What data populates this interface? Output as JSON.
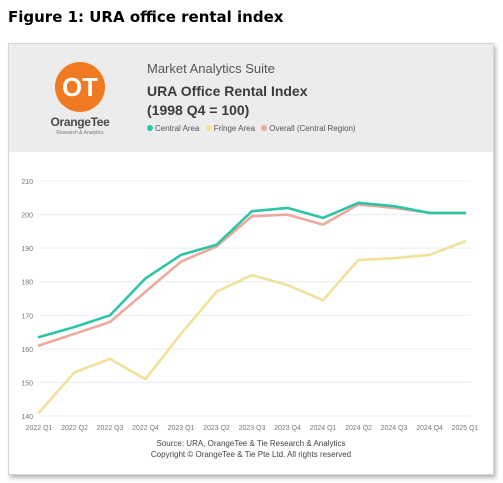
{
  "figure_title": "Figure 1: URA office rental index",
  "brand": {
    "logo_text": "OT",
    "name": "OrangeTee",
    "tagline": "Research & Analytics",
    "color": "#f07a21"
  },
  "header": {
    "suite": "Market Analytics Suite",
    "title_line1": "URA Office Rental Index",
    "title_line2": "(1998 Q4 = 100)"
  },
  "legend": [
    {
      "label": "Central Area",
      "color": "#2ec4a6"
    },
    {
      "label": "Fringe Area",
      "color": "#f2e09b"
    },
    {
      "label": "Overall (Central Region)",
      "color": "#eda99c"
    }
  ],
  "chart_data": {
    "type": "line",
    "categories": [
      "2022 Q1",
      "2022 Q2",
      "2022 Q3",
      "2022 Q4",
      "2023 Q1",
      "2023 Q2",
      "2023 Q3",
      "2023 Q4",
      "2024 Q1",
      "2024 Q2",
      "2024 Q3",
      "2024 Q4",
      "2025 Q1"
    ],
    "series": [
      {
        "name": "Central Area",
        "color": "#2ec4a6",
        "values": [
          163.5,
          166.5,
          170,
          181,
          188,
          191,
          201,
          202,
          199,
          203.5,
          202.5,
          200.5,
          200.5
        ]
      },
      {
        "name": "Fringe Area",
        "color": "#f2e09b",
        "values": [
          141,
          153,
          157,
          151,
          164.5,
          177,
          182,
          179,
          174.5,
          186.5,
          187,
          188,
          192
        ]
      },
      {
        "name": "Overall (Central Region)",
        "color": "#eda99c",
        "values": [
          161,
          164.5,
          168,
          177,
          186,
          190.5,
          199.5,
          200,
          197,
          203,
          202,
          200.5,
          200.5
        ]
      }
    ],
    "yticks": [
      140,
      150,
      160,
      170,
      180,
      190,
      200,
      210
    ],
    "ylim": [
      140,
      210
    ],
    "grid": true,
    "legend_position": "top"
  },
  "source": {
    "line1": "Source: URA, OrangeTee & Tie Research & Analytics",
    "line2": "Copyright © OrangeTee & Tie Pte Ltd. All rights reserved"
  }
}
